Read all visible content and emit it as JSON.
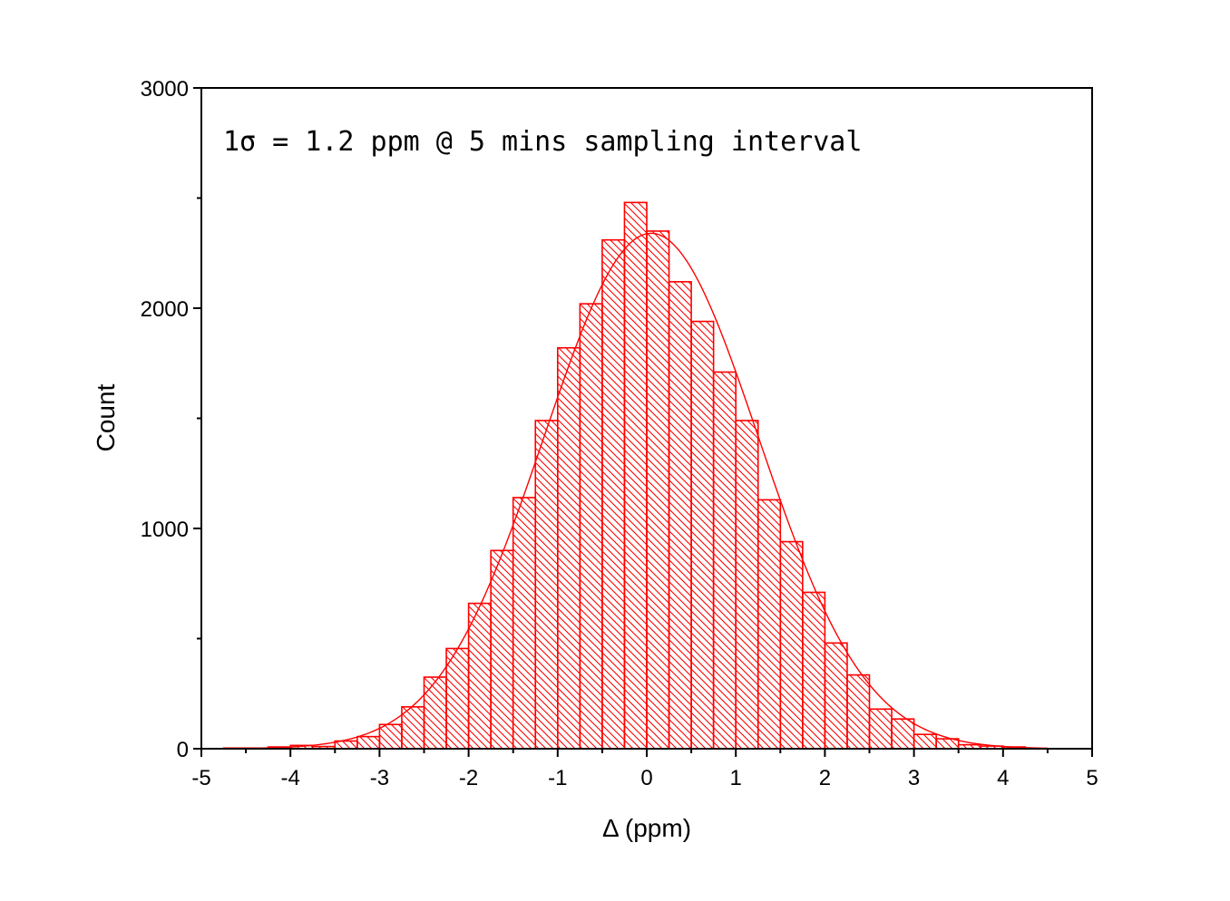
{
  "chart_data": {
    "type": "bar",
    "xlabel": "Δ (ppm)",
    "ylabel": "Count",
    "annotation": "1σ = 1.2 ppm @ 5 mins sampling interval",
    "xlim": [
      -5,
      5
    ],
    "ylim": [
      0,
      3000
    ],
    "x_ticks": [
      "-5",
      "-4",
      "-3",
      "-2",
      "-1",
      "0",
      "1",
      "2",
      "3",
      "4",
      "5"
    ],
    "y_ticks": [
      "0",
      "1000",
      "2000",
      "3000"
    ],
    "bin_width": 0.25,
    "bins": [
      {
        "x0": -4.75,
        "count": 3
      },
      {
        "x0": -4.5,
        "count": 3
      },
      {
        "x0": -4.25,
        "count": 8
      },
      {
        "x0": -4.0,
        "count": 15
      },
      {
        "x0": -3.75,
        "count": 10
      },
      {
        "x0": -3.5,
        "count": 35
      },
      {
        "x0": -3.25,
        "count": 55
      },
      {
        "x0": -3.0,
        "count": 110
      },
      {
        "x0": -2.75,
        "count": 190
      },
      {
        "x0": -2.5,
        "count": 325
      },
      {
        "x0": -2.25,
        "count": 455
      },
      {
        "x0": -2.0,
        "count": 660
      },
      {
        "x0": -1.75,
        "count": 900
      },
      {
        "x0": -1.5,
        "count": 1140
      },
      {
        "x0": -1.25,
        "count": 1490
      },
      {
        "x0": -1.0,
        "count": 1820
      },
      {
        "x0": -0.75,
        "count": 2020
      },
      {
        "x0": -0.5,
        "count": 2310
      },
      {
        "x0": -0.25,
        "count": 2480
      },
      {
        "x0": 0.0,
        "count": 2350
      },
      {
        "x0": 0.25,
        "count": 2120
      },
      {
        "x0": 0.5,
        "count": 1940
      },
      {
        "x0": 0.75,
        "count": 1710
      },
      {
        "x0": 1.0,
        "count": 1490
      },
      {
        "x0": 1.25,
        "count": 1130
      },
      {
        "x0": 1.5,
        "count": 940
      },
      {
        "x0": 1.75,
        "count": 710
      },
      {
        "x0": 2.0,
        "count": 480
      },
      {
        "x0": 2.25,
        "count": 335
      },
      {
        "x0": 2.5,
        "count": 180
      },
      {
        "x0": 2.75,
        "count": 135
      },
      {
        "x0": 3.0,
        "count": 65
      },
      {
        "x0": 3.25,
        "count": 45
      },
      {
        "x0": 3.5,
        "count": 18
      },
      {
        "x0": 3.75,
        "count": 12
      },
      {
        "x0": 4.0,
        "count": 8
      }
    ],
    "fit": {
      "type": "gaussian",
      "mean": 0.05,
      "sigma": 1.2,
      "amplitude": 2340
    },
    "color": "#ff0000",
    "grid": false,
    "legend": "none"
  }
}
